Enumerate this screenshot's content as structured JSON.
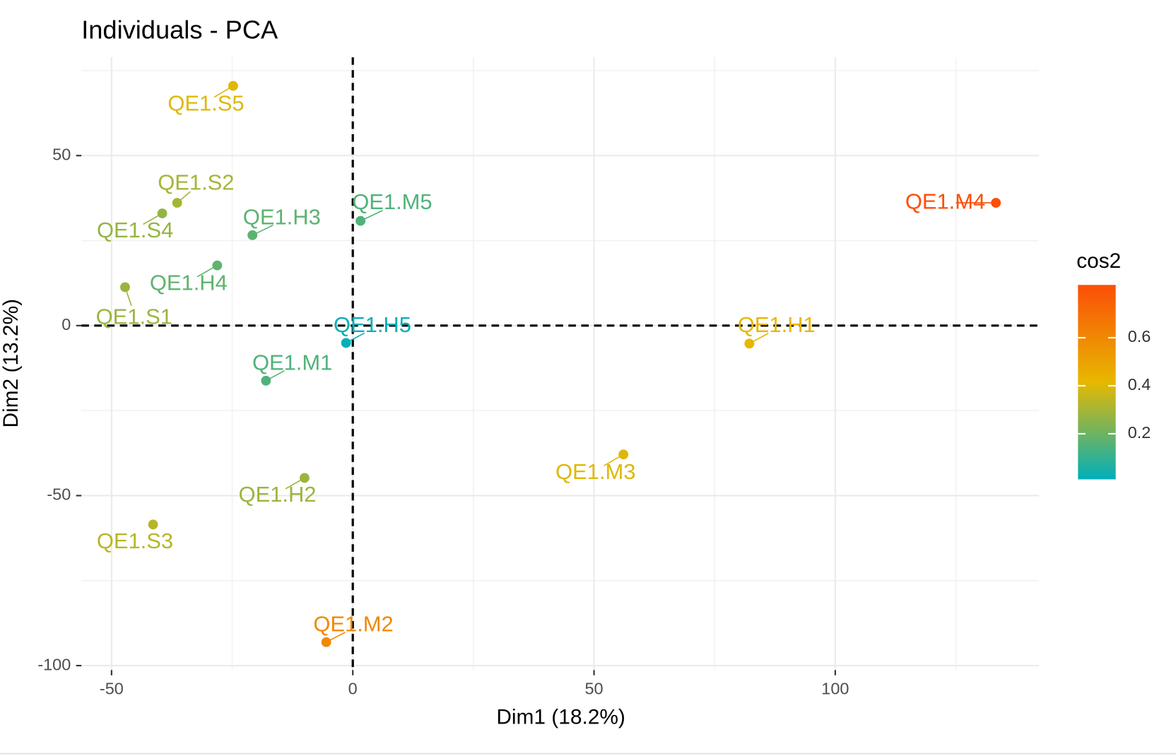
{
  "chart_data": {
    "type": "scatter",
    "title": "Individuals - PCA",
    "x_label": "Dim1 (18.2%)",
    "y_label": "Dim2 (13.2%)",
    "labels": [
      "QE1.S5",
      "QE1.S2",
      "QE1.S4",
      "QE1.H3",
      "QE1.M5",
      "QE1.H4",
      "QE1.S1",
      "QE1.H5",
      "QE1.M1",
      "QE1.H2",
      "QE1.S3",
      "QE1.M2",
      "QE1.M3",
      "QE1.H1",
      "QE1.M4"
    ],
    "x": [
      -24.8,
      -36.4,
      -39.5,
      -20.8,
      1.6,
      -28.1,
      -47.2,
      -1.4,
      -18.0,
      -10.0,
      -41.4,
      -5.5,
      56.1,
      82.2,
      133.3
    ],
    "values": [
      70.5,
      36.1,
      33.0,
      26.6,
      30.8,
      17.7,
      11.3,
      -5.1,
      -16.2,
      -44.8,
      -58.5,
      -93.1,
      -37.9,
      -5.3,
      36.1
    ],
    "cos2": [
      0.4,
      0.3,
      0.27,
      0.17,
      0.15,
      0.18,
      0.28,
      0.02,
      0.15,
      0.28,
      0.33,
      0.6,
      0.4,
      0.42,
      0.82
    ],
    "xlim": [
      -56.25,
      142.19
    ],
    "ylim": [
      -101.3,
      78.9
    ],
    "xticks": [
      -50,
      0,
      50,
      100
    ],
    "yticks": [
      -100,
      -50,
      0,
      50
    ],
    "minor_xticks": [
      -25,
      25,
      75,
      125
    ],
    "minor_yticks": [
      -75,
      -25,
      25,
      75
    ],
    "grid": true,
    "reference_lines": {
      "x": 0,
      "y": 0
    },
    "color_legend": {
      "title": "cos2",
      "gradient": [
        "#00AFBB",
        "#E7B800",
        "#FC4E07"
      ],
      "clim": [
        0.01,
        0.82
      ],
      "ticks": [
        0.2,
        0.4,
        0.6
      ]
    }
  }
}
